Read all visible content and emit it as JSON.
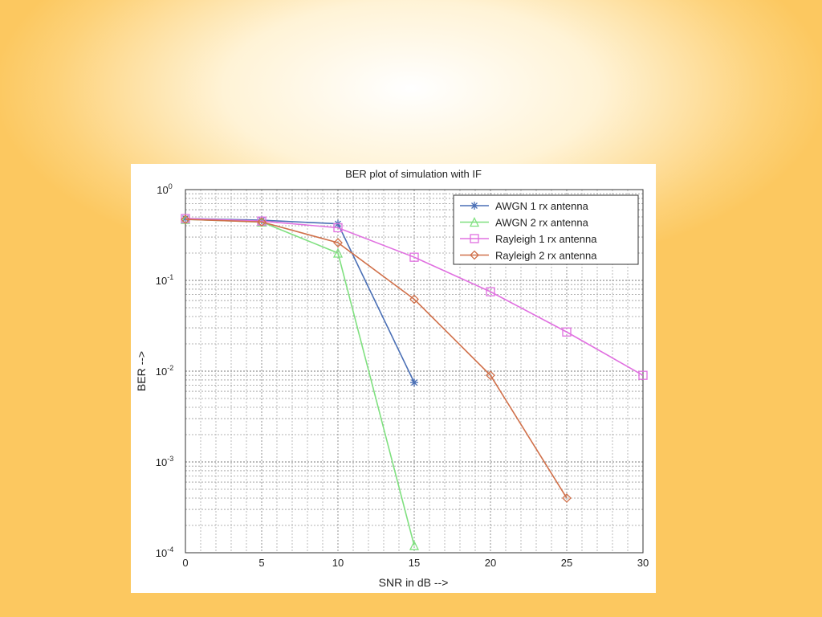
{
  "slide": {
    "background_color": "#fcc860",
    "highlight_color": "#ffffff"
  },
  "chart_data": {
    "type": "line",
    "title": "BER plot of simulation with IF",
    "xlabel": "SNR in dB -->",
    "ylabel": "BER -->",
    "xlim": [
      0,
      30
    ],
    "ylim": [
      0.0001,
      1
    ],
    "yscale": "log",
    "grid": true,
    "legend_position": "top-right",
    "x_ticks": [
      0,
      5,
      10,
      15,
      20,
      25,
      30
    ],
    "y_ticks": [
      {
        "value": 1,
        "base": "10",
        "exp": "0"
      },
      {
        "value": 0.1,
        "base": "10",
        "exp": "-1"
      },
      {
        "value": 0.01,
        "base": "10",
        "exp": "-2"
      },
      {
        "value": 0.001,
        "base": "10",
        "exp": "-3"
      },
      {
        "value": 0.0001,
        "base": "10",
        "exp": "-4"
      }
    ],
    "series": [
      {
        "name": "AWGN 1 rx antenna",
        "color": "#4a6fb5",
        "marker": "asterisk",
        "x": [
          0,
          5,
          10,
          15
        ],
        "y": [
          0.48,
          0.46,
          0.42,
          0.0075
        ]
      },
      {
        "name": "AWGN 2 rx antenna",
        "color": "#7fe07f",
        "marker": "triangle",
        "x": [
          0,
          5,
          10,
          15
        ],
        "y": [
          0.47,
          0.44,
          0.2,
          0.00012
        ]
      },
      {
        "name": "Rayleigh 1 rx antenna",
        "color": "#e070e0",
        "marker": "square",
        "x": [
          0,
          5,
          10,
          15,
          20,
          25,
          30
        ],
        "y": [
          0.48,
          0.45,
          0.38,
          0.18,
          0.075,
          0.027,
          0.009
        ]
      },
      {
        "name": "Rayleigh 2 rx antenna",
        "color": "#d0704a",
        "marker": "diamond",
        "x": [
          0,
          5,
          10,
          15,
          20,
          25
        ],
        "y": [
          0.47,
          0.44,
          0.26,
          0.062,
          0.009,
          0.0004
        ]
      }
    ]
  }
}
